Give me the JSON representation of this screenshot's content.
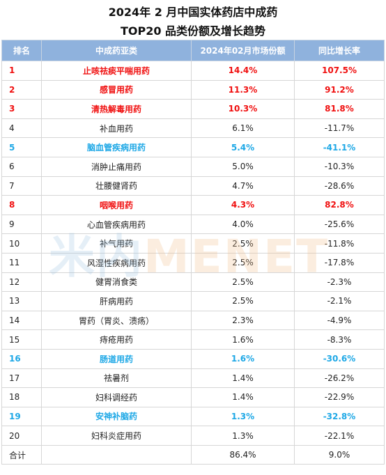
{
  "title_line1": "2024年 2 月中国实体药店中成药",
  "title_line2": "TOP20 品类份额及增长趋势",
  "headers": [
    "排名",
    "中成药亚类",
    "2024年02月市场份额",
    "同比增长率"
  ],
  "rows": [
    {
      "rank": "1",
      "category": "止咳祛痰平喘用药",
      "share": "14.4%",
      "growth": "107.5%",
      "highlight": "red"
    },
    {
      "rank": "2",
      "category": "感冒用药",
      "share": "11.3%",
      "growth": "91.2%",
      "highlight": "red"
    },
    {
      "rank": "3",
      "category": "清热解毒用药",
      "share": "10.3%",
      "growth": "81.8%",
      "highlight": "red"
    },
    {
      "rank": "4",
      "category": "补血用药",
      "share": "6.1%",
      "growth": "-11.7%",
      "highlight": "none"
    },
    {
      "rank": "5",
      "category": "脑血管疾病用药",
      "share": "5.4%",
      "growth": "-41.1%",
      "highlight": "blue"
    },
    {
      "rank": "6",
      "category": "消肿止痛用药",
      "share": "5.0%",
      "growth": "-10.3%",
      "highlight": "none"
    },
    {
      "rank": "7",
      "category": "壮腰健肾药",
      "share": "4.7%",
      "growth": "-28.6%",
      "highlight": "none"
    },
    {
      "rank": "8",
      "category": "咽喉用药",
      "share": "4.3%",
      "growth": "82.8%",
      "highlight": "red"
    },
    {
      "rank": "9",
      "category": "心血管疾病用药",
      "share": "4.0%",
      "growth": "-25.6%",
      "highlight": "none"
    },
    {
      "rank": "10",
      "category": "补气用药",
      "share": "2.5%",
      "growth": "-11.8%",
      "highlight": "none"
    },
    {
      "rank": "11",
      "category": "风湿性疾病用药",
      "share": "2.5%",
      "growth": "-17.8%",
      "highlight": "none"
    },
    {
      "rank": "12",
      "category": "健胃消食类",
      "share": "2.5%",
      "growth": "-2.3%",
      "highlight": "none"
    },
    {
      "rank": "13",
      "category": "肝病用药",
      "share": "2.5%",
      "growth": "-2.1%",
      "highlight": "none"
    },
    {
      "rank": "14",
      "category": "胃药（胃炎、溃疡）",
      "share": "2.3%",
      "growth": "-4.9%",
      "highlight": "none"
    },
    {
      "rank": "15",
      "category": "痔疮用药",
      "share": "1.6%",
      "growth": "-8.3%",
      "highlight": "none"
    },
    {
      "rank": "16",
      "category": "肠道用药",
      "share": "1.6%",
      "growth": "-30.6%",
      "highlight": "blue"
    },
    {
      "rank": "17",
      "category": "祛暑剂",
      "share": "1.4%",
      "growth": "-26.2%",
      "highlight": "none"
    },
    {
      "rank": "18",
      "category": "妇科调经药",
      "share": "1.4%",
      "growth": "-22.9%",
      "highlight": "none"
    },
    {
      "rank": "19",
      "category": "安神补脑药",
      "share": "1.3%",
      "growth": "-32.8%",
      "highlight": "blue"
    },
    {
      "rank": "20",
      "category": "妇科炎症用药",
      "share": "1.3%",
      "growth": "-22.1%",
      "highlight": "none"
    }
  ],
  "total": {
    "label": "合计",
    "category": "",
    "share": "86.4%",
    "growth": "9.0%"
  },
  "watermark": {
    "cn": "米内",
    "en": "MENET"
  },
  "colors": {
    "header_bg": "#8fb2dd",
    "highlight_red": "#f01010",
    "highlight_blue": "#1ea8e6"
  }
}
